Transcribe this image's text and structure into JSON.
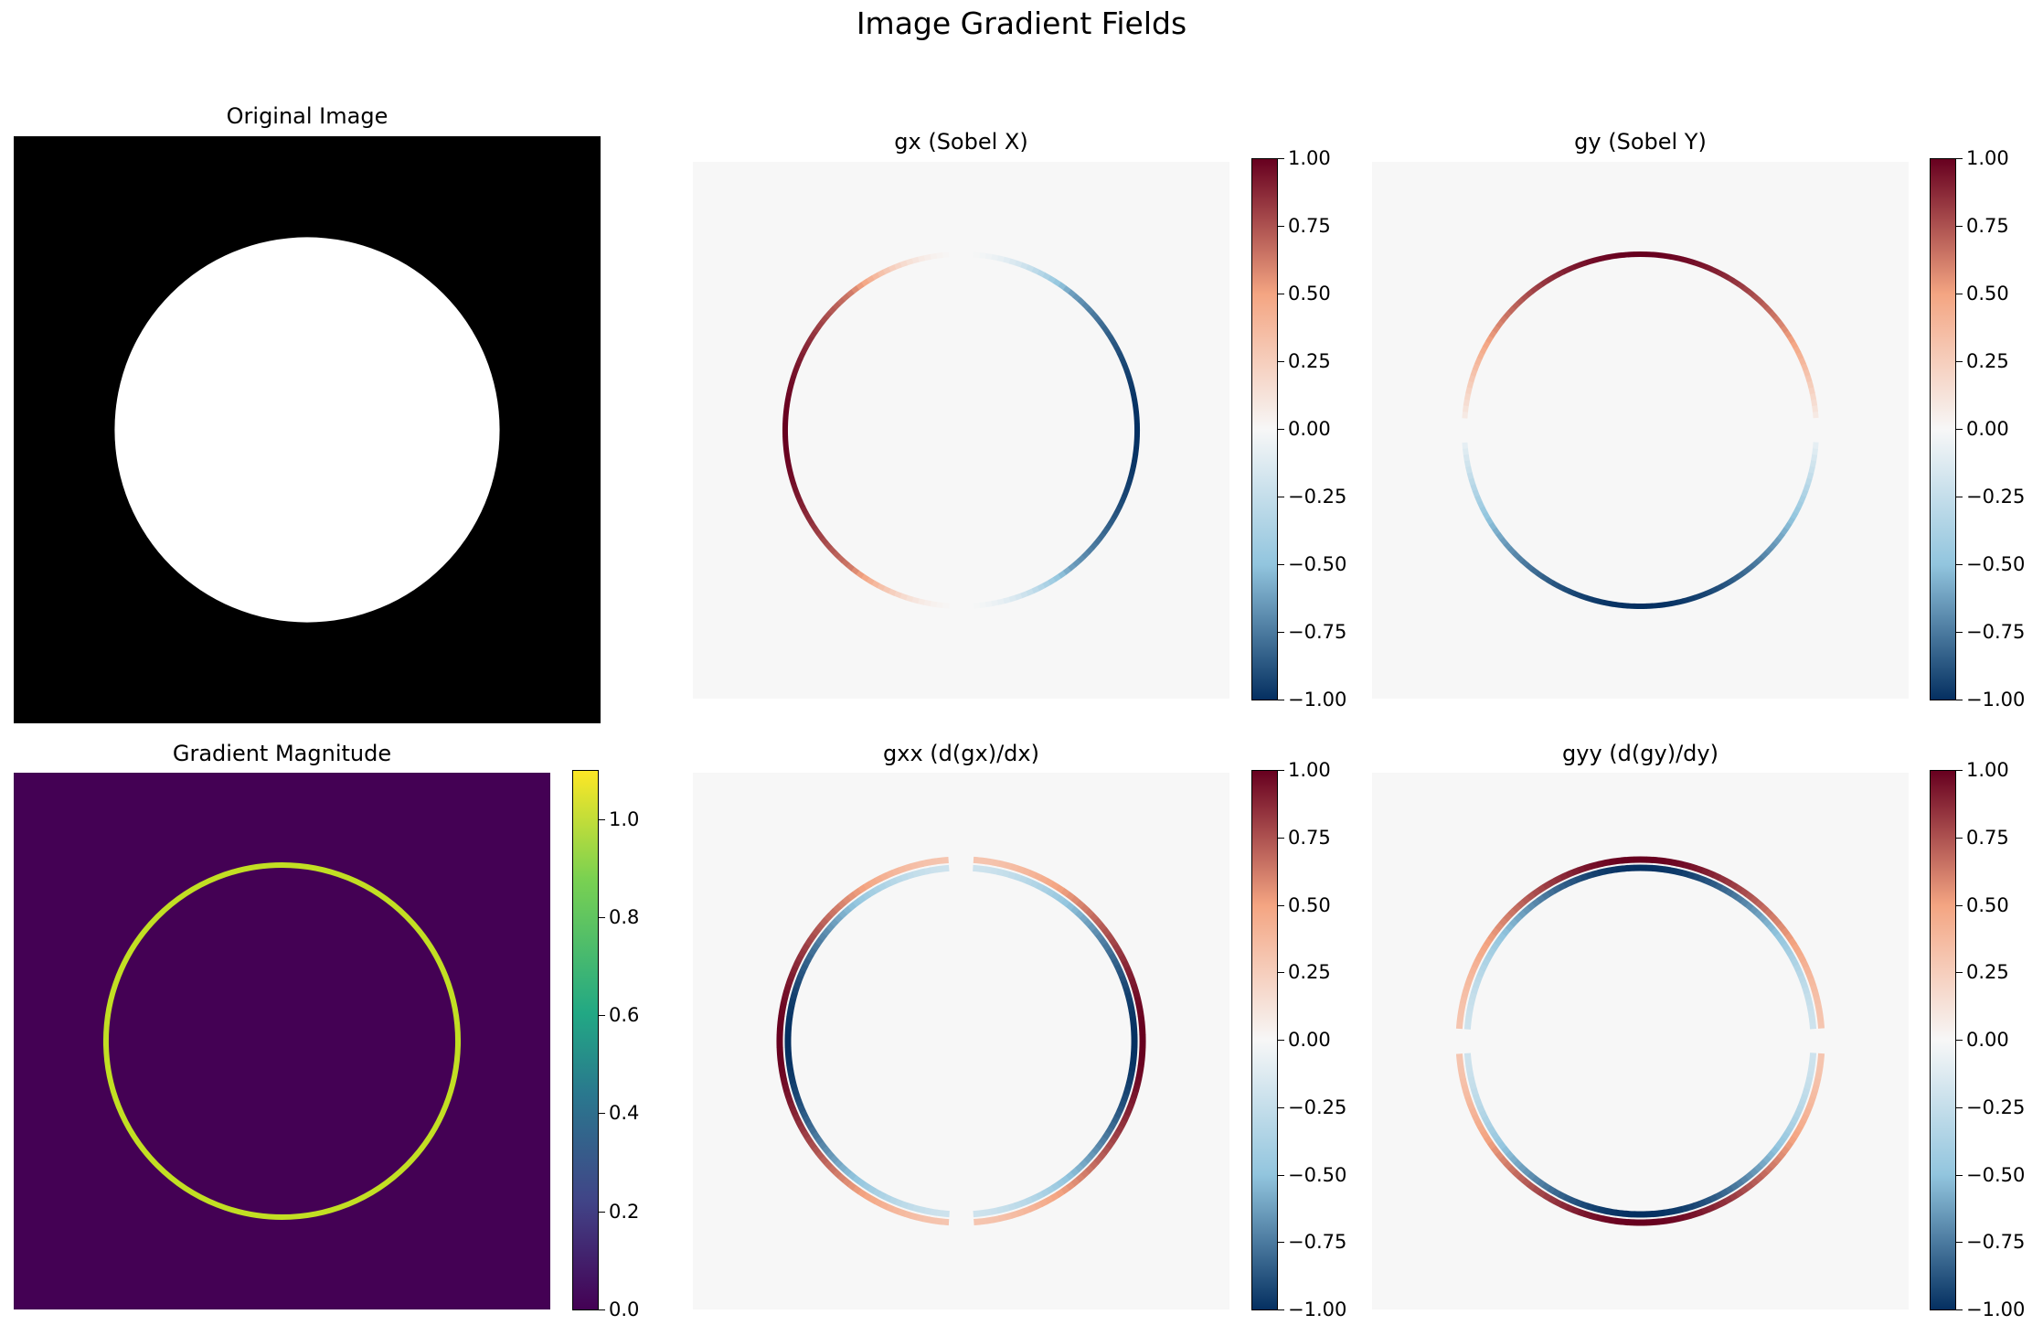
{
  "chart_data": {
    "suptitle": "Image Gradient Fields",
    "type": "heatmap",
    "panels": [
      {
        "id": "original",
        "title": "Original Image",
        "cmap": "gray",
        "content": "filled-disk",
        "colorbar": null
      },
      {
        "id": "gx",
        "title": "gx (Sobel X)",
        "cmap": "RdBu_r",
        "content": "ring-antisymmetric-x",
        "colorbar": {
          "ticks": [
            "1.00",
            "0.75",
            "0.50",
            "0.25",
            "0.00",
            "−0.25",
            "−0.50",
            "−0.75",
            "−1.00"
          ],
          "range": [
            -1,
            1
          ]
        }
      },
      {
        "id": "gy",
        "title": "gy (Sobel Y)",
        "cmap": "RdBu_r",
        "content": "ring-antisymmetric-y",
        "colorbar": {
          "ticks": [
            "1.00",
            "0.75",
            "0.50",
            "0.25",
            "0.00",
            "−0.25",
            "−0.50",
            "−0.75",
            "−1.00"
          ],
          "range": [
            -1,
            1
          ]
        }
      },
      {
        "id": "mag",
        "title": "Gradient Magnitude",
        "cmap": "viridis",
        "content": "ring",
        "colorbar": {
          "ticks": [
            "1.0",
            "0.8",
            "0.6",
            "0.4",
            "0.2",
            "0.0"
          ],
          "range": [
            0,
            1.1
          ]
        }
      },
      {
        "id": "gxx",
        "title": "gxx (d(gx)/dx)",
        "cmap": "RdBu_r",
        "content": "double-ring-x",
        "colorbar": {
          "ticks": [
            "1.00",
            "0.75",
            "0.50",
            "0.25",
            "0.00",
            "−0.25",
            "−0.50",
            "−0.75",
            "−1.00"
          ],
          "range": [
            -1,
            1
          ]
        }
      },
      {
        "id": "gyy",
        "title": "gyy (d(gy)/dy)",
        "cmap": "RdBu_r",
        "content": "double-ring-y",
        "colorbar": {
          "ticks": [
            "1.00",
            "0.75",
            "0.50",
            "0.25",
            "0.00",
            "−0.25",
            "−0.50",
            "−0.75",
            "−1.00"
          ],
          "range": [
            -1,
            1
          ]
        }
      }
    ],
    "colors": {
      "rd_dark": "#67001f",
      "rd_mid": "#f4a582",
      "neutral": "#f7f7f7",
      "bu_mid": "#92c5de",
      "bu_dark": "#053061",
      "viridis_bg": "#440154",
      "viridis_ring": "#c2df23"
    }
  }
}
